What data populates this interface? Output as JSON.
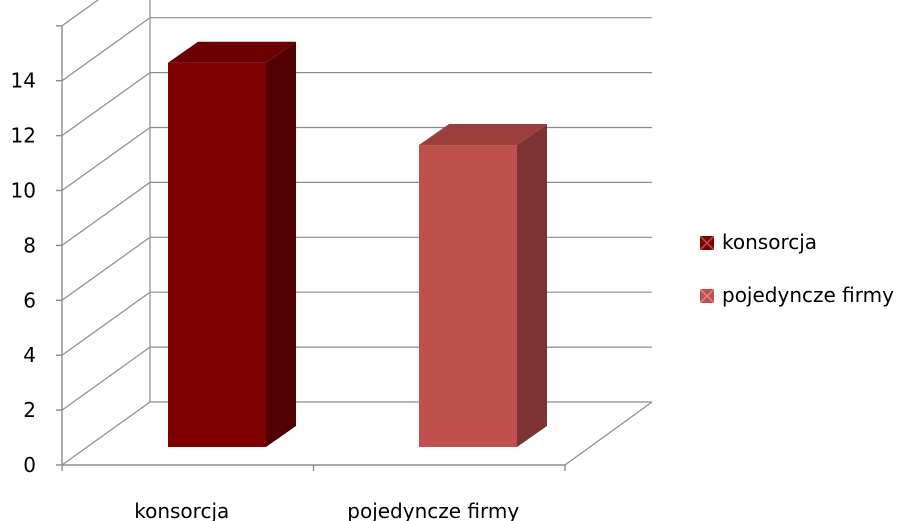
{
  "chart_data": {
    "type": "bar",
    "style": "3d-column",
    "categories": [
      "konsorcja",
      "pojedyncze firmy"
    ],
    "series": [
      {
        "name": "konsorcja",
        "values": [
          14,
          null
        ],
        "color": "#7f0000",
        "side_color": "#520000",
        "top_color": "#6a0000"
      },
      {
        "name": "pojedyncze firmy",
        "values": [
          null,
          11
        ],
        "color": "#c0504d",
        "side_color": "#7d3331",
        "top_color": "#9a3f3c"
      }
    ],
    "y_ticks": [
      "0",
      "2",
      "4",
      "6",
      "8",
      "10",
      "12",
      "14"
    ],
    "ylim": [
      0,
      16
    ],
    "grid": true,
    "legend_position": "right"
  }
}
